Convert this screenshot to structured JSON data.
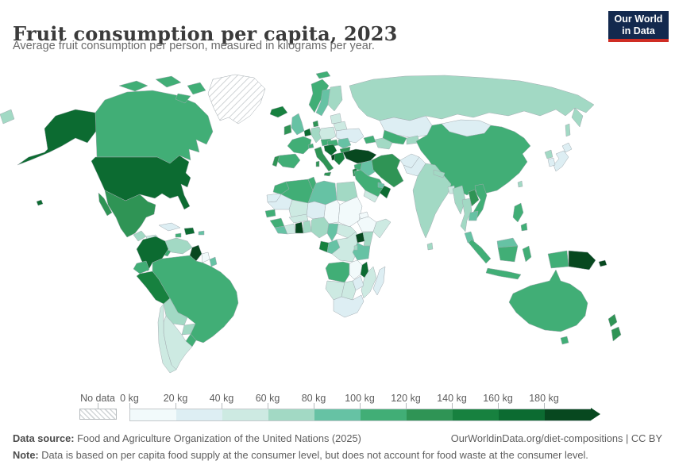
{
  "header": {
    "title": "Fruit consumption per capita, 2023",
    "subtitle": "Average fruit consumption per person, measured in kilograms per year.",
    "logo": {
      "line1": "Our World",
      "line2": "in Data"
    }
  },
  "legend": {
    "no_data_label": "No data",
    "ticks": [
      "0 kg",
      "20 kg",
      "40 kg",
      "60 kg",
      "80 kg",
      "100 kg",
      "120 kg",
      "140 kg",
      "160 kg",
      "180 kg"
    ]
  },
  "footer": {
    "source_label": "Data source:",
    "source_text": " Food and Agriculture Organization of the United Nations (2025)",
    "attribution": "OurWorldinData.org/diet-compositions | CC BY",
    "note_label": "Note:",
    "note_text": " Data is based on per capita food supply at the consumer level, but does not account for food waste at the consumer level."
  },
  "colors": {
    "logo_bg": "#13294e",
    "logo_accent": "#cf2d24",
    "title_text": "#3b3b3b",
    "muted_text": "#5e5e5e",
    "border": "#a2abb0"
  },
  "chart_data": {
    "type": "choropleth",
    "title": "Fruit consumption per capita, 2023",
    "unit": "kilograms per person per year",
    "bin_edges": [
      0,
      20,
      40,
      60,
      80,
      100,
      120,
      140,
      160,
      180
    ],
    "bin_labels": [
      "0-20 kg",
      "20-40 kg",
      "40-60 kg",
      "60-80 kg",
      "80-100 kg",
      "100-120 kg",
      "120-140 kg",
      "140-160 kg",
      "160-180 kg",
      "180+ kg"
    ],
    "palette": [
      "#f2fafb",
      "#ddeef3",
      "#cdeae2",
      "#a2d9c4",
      "#66c2a4",
      "#41ae76",
      "#2f9455",
      "#17813f",
      "#0c6b31",
      "#07481f"
    ],
    "no_data": {
      "label": "No data",
      "pattern": "hatch"
    },
    "values": {
      "greenland": -1,
      "canada": 5,
      "united-states": 8,
      "mexico": 6,
      "guatemala": 3,
      "honduras-nicaragua": 2,
      "costa-rica-panama": 5,
      "cuba": 1,
      "jamaica": 5,
      "hispaniola": 8,
      "puerto-rico": 4,
      "colombia": 8,
      "venezuela": 3,
      "guyana": 9,
      "suriname": 0,
      "french-guiana": 4,
      "ecuador": 5,
      "peru": 7,
      "brazil": 5,
      "bolivia": 3,
      "paraguay": 3,
      "uruguay": 5,
      "argentina": 2,
      "chile": 2,
      "iceland": 7,
      "united-kingdom": 4,
      "ireland": 6,
      "norway": 5,
      "sweden": 4,
      "finland": 3,
      "denmark": 6,
      "netherlands-belgium": 8,
      "germany": 3,
      "france": 5,
      "spain": 5,
      "portugal": 6,
      "switzerland": 5,
      "italy": 6,
      "czech-austria": 5,
      "poland": 2,
      "baltics": 2,
      "belarus": 2,
      "ukraine": 1,
      "hungary-slovakia": 5,
      "romania": 4,
      "bulgaria": 6,
      "balkans-west": 8,
      "albania": 9,
      "greece": 7,
      "turkey": 9,
      "caucasus": 5,
      "russia": 3,
      "kazakhstan": 1,
      "uzbekistan": 5,
      "turkmenistan": 3,
      "kyrgyzstan-tajikistan": 3,
      "mongolia": 1,
      "china": 5,
      "taiwan": 3,
      "japan": 1,
      "north-korea": 3,
      "south-korea": 1,
      "afghanistan": 1,
      "pakistan": 1,
      "iran": 6,
      "iraq": 4,
      "syria": 5,
      "jordan-israel": 7,
      "saudi-arabia": 5,
      "uae": 4,
      "yemen": 2,
      "oman": 8,
      "india": 3,
      "nepal": 3,
      "bangladesh": 2,
      "sri-lanka": 3,
      "myanmar": 3,
      "thailand": 3,
      "laos": 6,
      "vietnam": 5,
      "cambodia": 4,
      "malaysia": 4,
      "indonesia": 5,
      "philippines": 5,
      "papua-new-guinea": 9,
      "australia": 5,
      "new-zealand": 6,
      "morocco": 5,
      "algeria": 5,
      "tunisia": 5,
      "libya": 4,
      "egypt": 3,
      "western-sahara": 1,
      "mauritania": 1,
      "mali": 2,
      "niger": 1,
      "chad": 0,
      "sudan": 0,
      "eritrea": 0,
      "ethiopia": 0,
      "somalia": 2,
      "senegal": 5,
      "guinea": 5,
      "sierra-leone-liberia": 4,
      "cote-divoire": 2,
      "ghana": 9,
      "togo-benin": 3,
      "burkina-faso": 2,
      "nigeria": 3,
      "cameroon": 4,
      "central-african-republic": 2,
      "gabon": 7,
      "congo": 4,
      "dr-congo": 2,
      "uganda": 9,
      "kenya": 3,
      "tanzania": 4,
      "rwanda-burundi": 3,
      "angola": 5,
      "zambia": 0,
      "malawi": 8,
      "mozambique": 2,
      "zimbabwe": 1,
      "namibia": 2,
      "botswana": 2,
      "south-africa": 1,
      "madagascar": 1
    }
  }
}
